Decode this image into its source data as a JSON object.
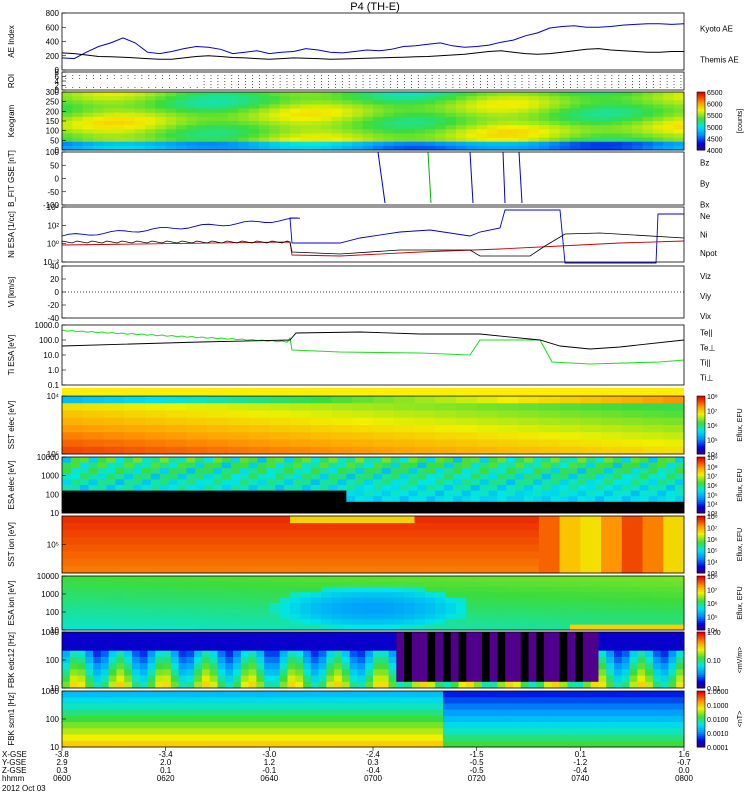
{
  "title": "P4 (TH-E)",
  "colors": {
    "kyoto": "#0000cc",
    "themis": "#000000",
    "red": "#cc0000",
    "green": "#00aa00",
    "blue": "#0000cc",
    "bright_green": "#22dd22"
  },
  "chart_data": [
    {
      "type": "line",
      "name": "ae",
      "ylabel": "AE Index",
      "ylim": [
        0,
        800
      ],
      "ticks": [
        "800",
        "600",
        "400",
        "200",
        "0"
      ],
      "series": [
        {
          "name": "Kyoto AE",
          "color": "#0000cc",
          "values": [
            170,
            160,
            250,
            330,
            380,
            450,
            380,
            250,
            230,
            260,
            300,
            330,
            320,
            290,
            230,
            250,
            270,
            230,
            250,
            260,
            300,
            280,
            250,
            240,
            260,
            280,
            270,
            290,
            330,
            340,
            360,
            380,
            340,
            320,
            330,
            350,
            390,
            420,
            480,
            520,
            590,
            610,
            620,
            600,
            600,
            610,
            630,
            640,
            650,
            650,
            640,
            650
          ]
        },
        {
          "name": "Themis AE",
          "color": "#000000",
          "values": [
            240,
            230,
            210,
            190,
            185,
            180,
            170,
            160,
            150,
            150,
            170,
            190,
            200,
            190,
            175,
            170,
            160,
            150,
            160,
            170,
            165,
            160,
            150,
            155,
            160,
            165,
            170,
            175,
            180,
            185,
            190,
            200,
            210,
            220,
            240,
            260,
            270,
            250,
            230,
            220,
            230,
            250,
            270,
            290,
            300,
            280,
            270,
            260,
            250,
            250,
            260,
            260
          ]
        }
      ]
    },
    {
      "type": "table",
      "name": "roi",
      "ylabel": "ROI",
      "ticks": [
        "8",
        "6",
        "4",
        "2",
        "0"
      ]
    },
    {
      "type": "heatmap",
      "name": "keogram",
      "ylabel": "Keogram",
      "ticks": [
        "300",
        "250",
        "200",
        "150",
        "100",
        "50",
        "0"
      ],
      "colorbar": {
        "label": "[counts]",
        "ticks": [
          "6500",
          "6000",
          "5500",
          "5000",
          "4500",
          "4000"
        ]
      }
    },
    {
      "type": "line",
      "name": "bfit",
      "ylabel": "B_FIT GSE [nT]",
      "ticks": [
        "100",
        "50",
        "0",
        "-50",
        "-100"
      ],
      "legend": [
        "Bz",
        "By",
        "Bx"
      ]
    },
    {
      "type": "line",
      "name": "density",
      "ylabel": "Ni ESA [1/cc]",
      "ticks": [
        "10⁴",
        "10²",
        "10⁰",
        "10⁻²"
      ],
      "legend": [
        "Ne",
        "Ni",
        "Npot"
      ]
    },
    {
      "type": "line",
      "name": "velocity",
      "ylabel": "Vi [km/s]",
      "ticks": [
        "40",
        "20",
        "0",
        "-20",
        "-40"
      ],
      "legend": [
        "Viz",
        "Viy",
        "Vix"
      ]
    },
    {
      "type": "line",
      "name": "temperature",
      "ylabel": "Ti ESA [eV]",
      "ticks": [
        "1000.0",
        "100.0",
        "10.0",
        "1.0",
        "0.1"
      ],
      "legend": [
        "Te||",
        "Te⊥",
        "Ti||",
        "Ti⊥"
      ]
    },
    {
      "type": "heatmap",
      "name": "sst_e",
      "ylabel": "SST elec [eV]",
      "ticks": [
        "10⁴",
        "10⁵"
      ],
      "colorbar": {
        "label": "Eflux, EFU",
        "ticks": [
          "10⁸",
          "10⁷",
          "10⁶",
          "10⁵",
          "10⁴"
        ]
      }
    },
    {
      "type": "heatmap",
      "name": "esa_e",
      "ylabel": "ESA elec [eV]",
      "ticks": [
        "10000",
        "1000",
        "100",
        "10"
      ],
      "colorbar": {
        "label": "Eflux, EFU",
        "ticks": [
          "10⁹",
          "10⁸",
          "10⁷",
          "10⁶",
          "10⁵",
          "10⁴",
          "10³"
        ]
      }
    },
    {
      "type": "heatmap",
      "name": "sst_i",
      "ylabel": "SST ion [eV]",
      "ticks": [
        "10⁵"
      ],
      "colorbar": {
        "label": "Eflux, EFU",
        "ticks": [
          "10⁸",
          "10⁷",
          "10⁶",
          "10⁵",
          "10⁴",
          "10³"
        ]
      }
    },
    {
      "type": "heatmap",
      "name": "esa_i",
      "ylabel": "ESA ion [eV]",
      "ticks": [
        "10000",
        "1000",
        "100",
        "10"
      ],
      "colorbar": {
        "label": "Eflux, EFU",
        "ticks": [
          "10⁸",
          "10⁷",
          "10⁶",
          "10⁵",
          "10⁴"
        ]
      }
    },
    {
      "type": "heatmap",
      "name": "fbk_e",
      "ylabel": "FBK edc12 [Hz]",
      "ticks": [
        "1000",
        "100",
        "10"
      ],
      "colorbar": {
        "label": "<mV/m>",
        "ticks": [
          "1.00",
          "0.10",
          "0.01"
        ]
      }
    },
    {
      "type": "heatmap",
      "name": "fbk_b",
      "ylabel": "FBK scm1 [Hz]",
      "ticks": [
        "1000",
        "100",
        "10"
      ],
      "colorbar": {
        "label": "<nT>",
        "ticks": [
          "1.0000",
          "0.1000",
          "0.0100",
          "0.0010",
          "0.0001"
        ]
      }
    }
  ],
  "xaxis": {
    "row_labels": [
      "X-GSE",
      "Y-GSE",
      "Z-GSE",
      "hhmm",
      "2012 Oct 03"
    ],
    "columns": [
      {
        "x": "-3.8",
        "y": "2.9",
        "z": "0.3",
        "t": "0600"
      },
      {
        "x": "-3.4",
        "y": "2.0",
        "z": "0.1",
        "t": "0620"
      },
      {
        "x": "-3.0",
        "y": "1.2",
        "z": "-0.1",
        "t": "0640"
      },
      {
        "x": "-2.4",
        "y": "0.3",
        "z": "-0.4",
        "t": "0700"
      },
      {
        "x": "-1.5",
        "y": "-0.5",
        "z": "-0.5",
        "t": "0720"
      },
      {
        "x": "0.1",
        "y": "-1.2",
        "z": "-0.4",
        "t": "0740"
      },
      {
        "x": "1.6",
        "y": "-0.7",
        "z": "0.0",
        "t": "0800"
      }
    ]
  },
  "legends": {
    "ae": [
      "Kyoto AE",
      "Themis AE"
    ],
    "bfit": [
      "Bz",
      "By",
      "Bx"
    ],
    "density": [
      "Ne",
      "Ni",
      "Npot"
    ],
    "velocity": [
      "Viz",
      "Viy",
      "Vix"
    ],
    "temperature": [
      "Te||",
      "Te⊥",
      "Ti||",
      "Ti⊥"
    ]
  }
}
